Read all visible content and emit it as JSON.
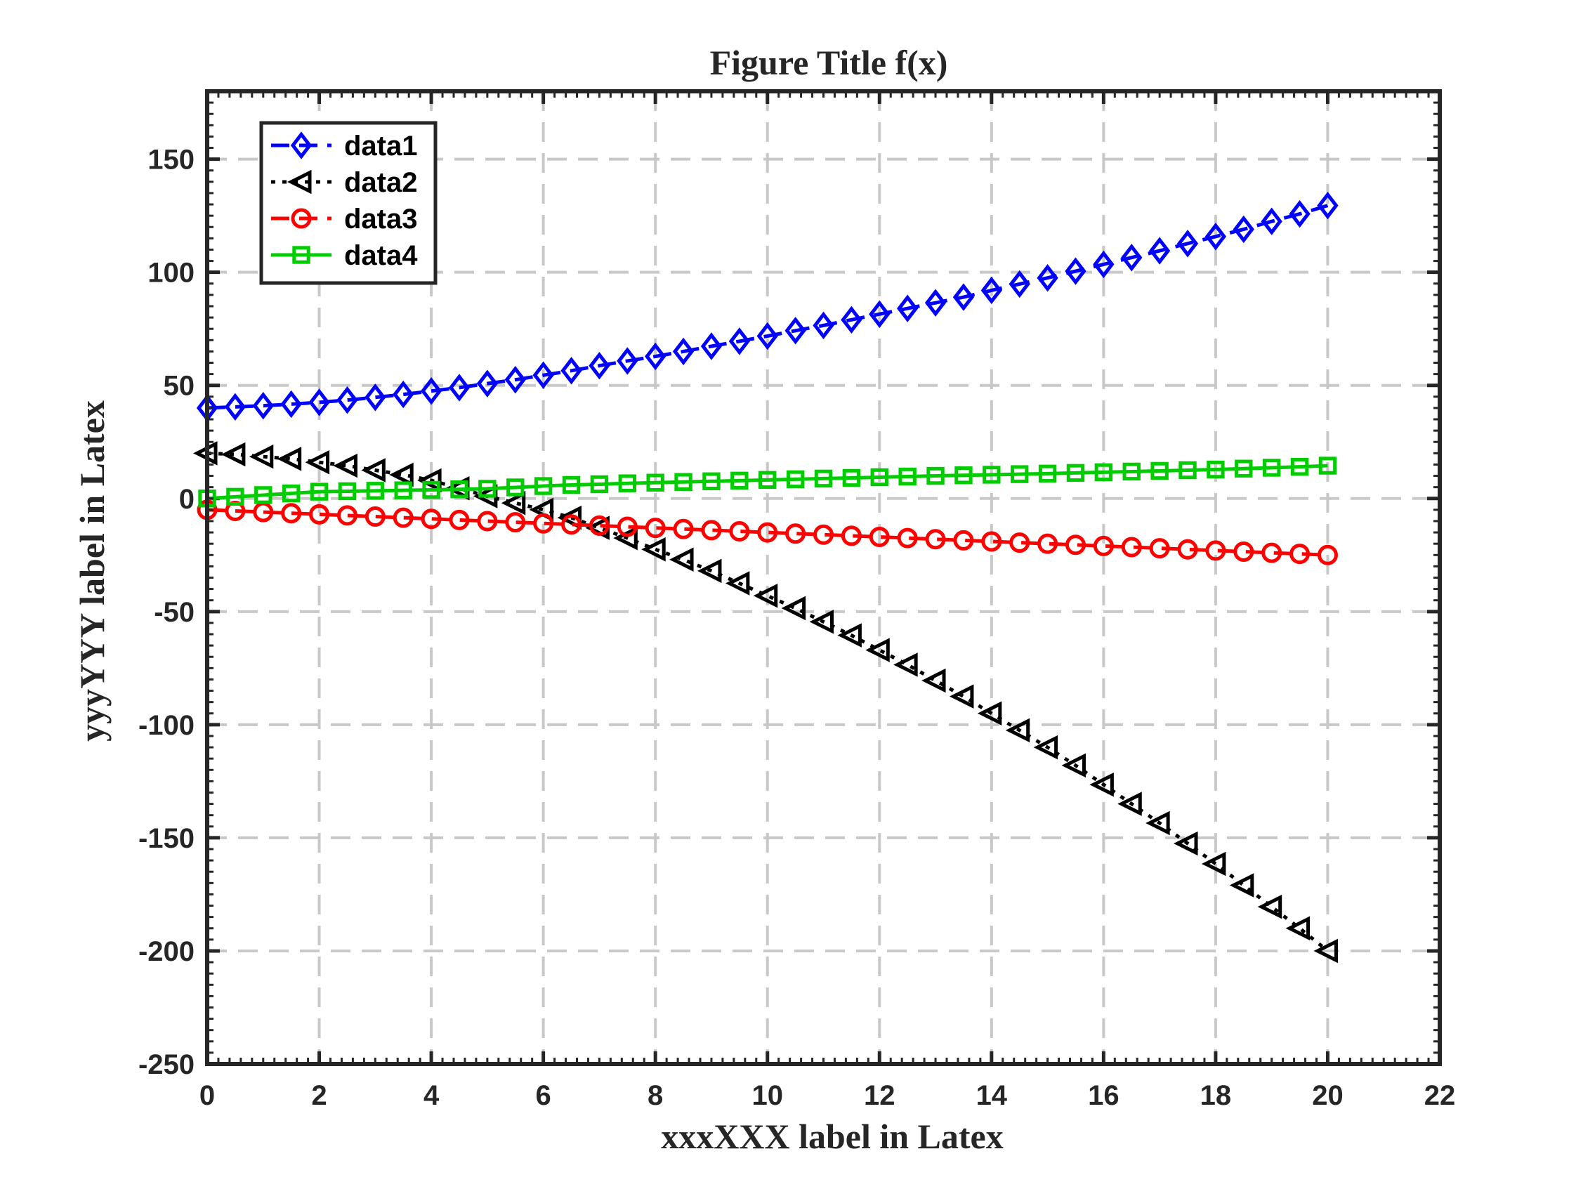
{
  "chart_data": {
    "type": "line",
    "title": "Figure Title f(x)",
    "xlabel": "xxxXXX label in Latex",
    "ylabel": "yyyYYY label in Latex",
    "xlim": [
      0,
      22
    ],
    "ylim": [
      -250,
      180
    ],
    "xticks": [
      0,
      2,
      4,
      6,
      8,
      10,
      12,
      14,
      16,
      18,
      20,
      22
    ],
    "yticks": [
      -250,
      -200,
      -150,
      -100,
      -50,
      0,
      50,
      100,
      150
    ],
    "grid": true,
    "legend_position": "top-left",
    "x": [
      0,
      0.5,
      1,
      1.5,
      2,
      2.5,
      3,
      3.5,
      4,
      4.5,
      5,
      5.5,
      6,
      6.5,
      7,
      7.5,
      8,
      8.5,
      9,
      9.5,
      10,
      10.5,
      11,
      11.5,
      12,
      12.5,
      13,
      13.5,
      14,
      14.5,
      15,
      15.5,
      16,
      16.5,
      17,
      17.5,
      18,
      18.5,
      19,
      19.5,
      20
    ],
    "series": [
      {
        "name": "data1",
        "color": "#0000ff",
        "line_style": "dashed",
        "marker": "diamond",
        "values": [
          40,
          40.5,
          41,
          41.7,
          42.5,
          43.5,
          44.7,
          46,
          47.5,
          49,
          50.8,
          52.5,
          54.5,
          56.5,
          58.7,
          60.8,
          62.8,
          65,
          67.3,
          69.5,
          71.8,
          74.2,
          76.5,
          79,
          81.5,
          84,
          86.5,
          89,
          92,
          94.8,
          97.5,
          100.5,
          103.5,
          106.5,
          109.5,
          112.7,
          115.8,
          119,
          122.5,
          125.8,
          129.5
        ]
      },
      {
        "name": "data2",
        "color": "#000000",
        "line_style": "dotted",
        "marker": "triangle-left",
        "values": [
          20,
          19.5,
          18.5,
          17.5,
          16,
          14.5,
          12.5,
          10.5,
          8,
          4.5,
          1,
          -2,
          -5,
          -8.5,
          -13,
          -17.5,
          -22.5,
          -27,
          -32,
          -37.5,
          -43,
          -48.5,
          -54.5,
          -60.5,
          -67,
          -73.5,
          -80.5,
          -87.5,
          -95,
          -102.5,
          -110,
          -118,
          -126.5,
          -135,
          -143.5,
          -152.5,
          -161.5,
          -171,
          -180.5,
          -190,
          -200
        ]
      },
      {
        "name": "data3",
        "color": "#ff0000",
        "line_style": "dashed",
        "marker": "circle",
        "values": [
          -5,
          -5.5,
          -6,
          -6.5,
          -7,
          -7.5,
          -8,
          -8.5,
          -9,
          -9.5,
          -10,
          -10.5,
          -11,
          -11.5,
          -12,
          -12.5,
          -13,
          -13.5,
          -14,
          -14.5,
          -15,
          -15.5,
          -16,
          -16.5,
          -17,
          -17.5,
          -18,
          -18.5,
          -19,
          -19.5,
          -20,
          -20.5,
          -21,
          -21.5,
          -22,
          -22.5,
          -23,
          -23.5,
          -24,
          -24.5,
          -25
        ]
      },
      {
        "name": "data4",
        "color": "#00cc00",
        "line_style": "solid",
        "marker": "square",
        "values": [
          0,
          0.75,
          1.5,
          2.25,
          3,
          3.2,
          3.4,
          3.6,
          3.8,
          4.05,
          4.3,
          4.9,
          5.5,
          6,
          6.3,
          6.7,
          7,
          7.3,
          7.6,
          7.9,
          8.2,
          8.5,
          8.8,
          9.1,
          9.4,
          9.7,
          10,
          10.25,
          10.5,
          10.75,
          11,
          11.3,
          11.6,
          11.9,
          12.2,
          12.5,
          12.8,
          13.2,
          13.6,
          14,
          14.5
        ]
      }
    ]
  }
}
